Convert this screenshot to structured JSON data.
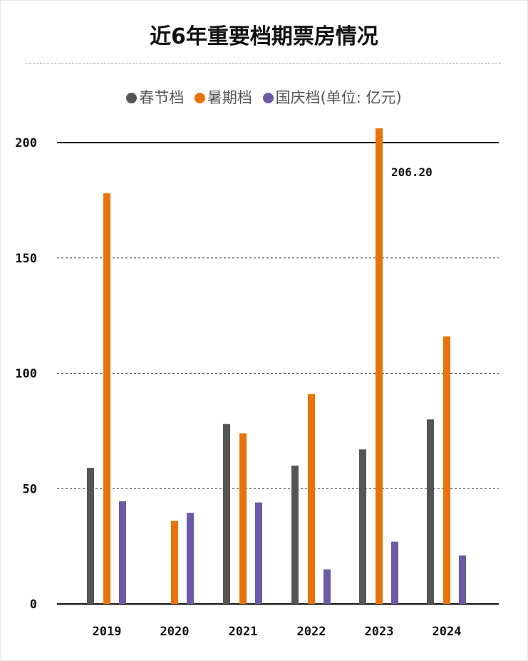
{
  "title": "近6年重要档期票房情况",
  "legend": [
    {
      "label": "春节档",
      "color": "#555555"
    },
    {
      "label": "暑期档",
      "color": "#E8730C"
    },
    {
      "label": "国庆档(单位: 亿元)",
      "color": "#6B5AA6"
    }
  ],
  "chart_data": {
    "type": "bar",
    "title": "近6年重要档期票房情况",
    "unit": "亿元",
    "categories": [
      "2019",
      "2020",
      "2021",
      "2022",
      "2023",
      "2024"
    ],
    "series": [
      {
        "name": "春节档",
        "color": "#555555",
        "values": [
          59,
          null,
          78,
          60,
          67,
          80
        ]
      },
      {
        "name": "暑期档",
        "color": "#E8730C",
        "values": [
          178,
          36,
          74,
          91,
          206.2,
          116
        ]
      },
      {
        "name": "国庆档",
        "color": "#6B5AA6",
        "values": [
          44.5,
          39.5,
          44,
          15,
          27,
          21
        ]
      }
    ],
    "yticks": [
      0,
      50,
      100,
      150,
      200
    ],
    "ylim": [
      0,
      210
    ],
    "annotations": [
      {
        "category": "2023",
        "series": "暑期档",
        "text": "206.20"
      }
    ],
    "grid": "dashed horizontal",
    "legend_position": "top"
  }
}
